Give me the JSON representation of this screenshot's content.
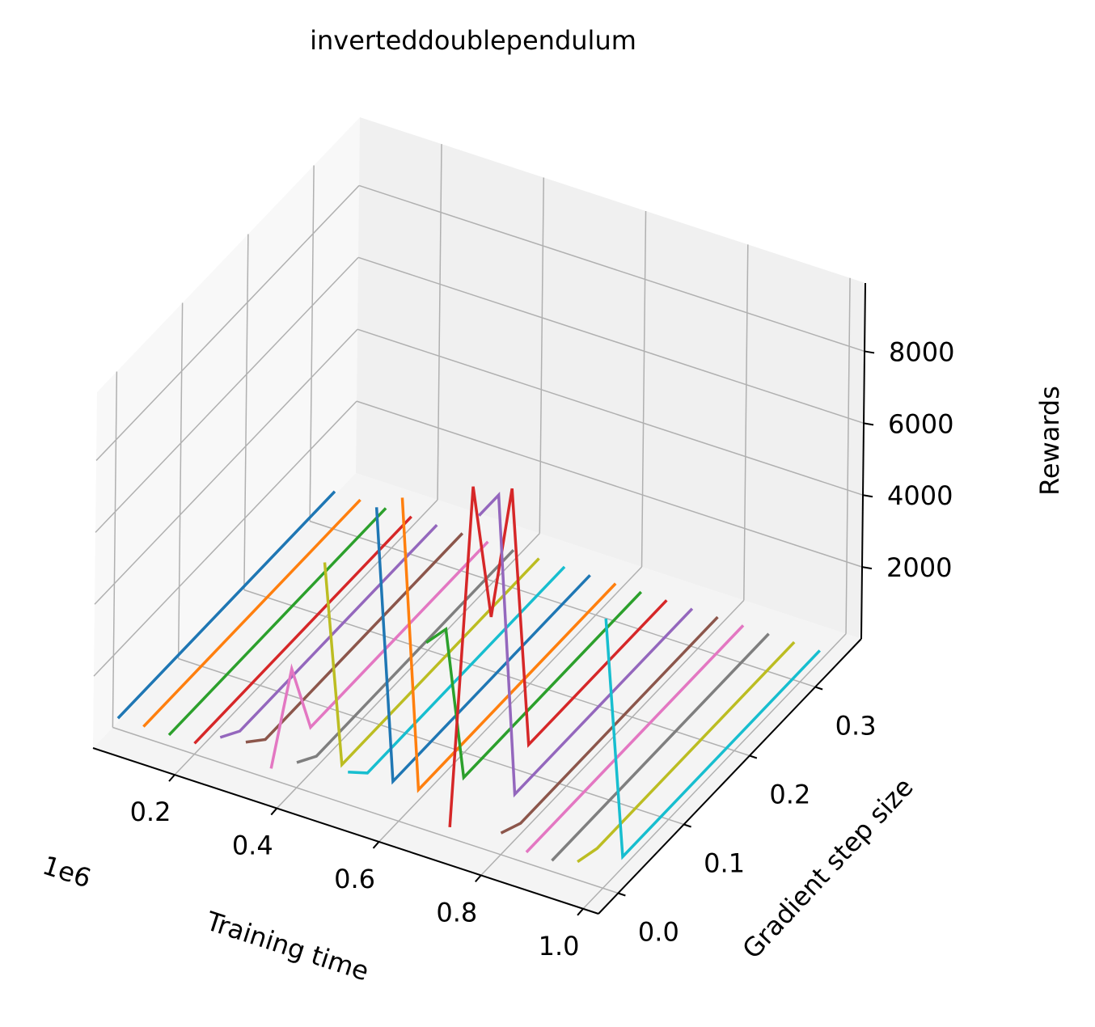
{
  "chart_data": {
    "type": "line3d",
    "title": "inverteddoublependulum",
    "xlabel": "Training time",
    "ylabel": "Gradient step size",
    "zlabel": "Rewards",
    "x_offset_label": "1e6",
    "xlim": [
      0.04,
      1.03
    ],
    "ylim": [
      -0.03,
      0.37
    ],
    "zlim": [
      0,
      9900
    ],
    "xticks": [
      0.2,
      0.4,
      0.6,
      0.8,
      {
        "value": 1.0,
        "label": "1.0"
      }
    ],
    "yticks": [
      {
        "value": 0.0,
        "label": "0.0"
      },
      0.1,
      0.2,
      0.3
    ],
    "zticks": [
      2000,
      4000,
      6000,
      8000
    ],
    "grid": true,
    "y": [
      0,
      0.03,
      0.06,
      0.09,
      0.12,
      0.15,
      0.18,
      0.21,
      0.24,
      0.27,
      0.3,
      0.33
    ],
    "series": [
      {
        "x": 0.05,
        "color": "#1f77b4",
        "values": [
          300,
          300,
          300,
          300,
          300,
          300,
          300,
          300,
          300,
          300,
          300,
          300
        ]
      },
      {
        "x": 0.1,
        "color": "#ff7f0e",
        "values": [
          300,
          300,
          300,
          300,
          300,
          300,
          300,
          300,
          300,
          300,
          300,
          300
        ]
      },
      {
        "x": 0.15,
        "color": "#2ca02c",
        "values": [
          300,
          300,
          300,
          300,
          300,
          300,
          300,
          300,
          300,
          300,
          300,
          300
        ]
      },
      {
        "x": 0.2,
        "color": "#d62728",
        "values": [
          300,
          300,
          300,
          300,
          300,
          300,
          300,
          300,
          300,
          300,
          300,
          300
        ]
      },
      {
        "x": 0.25,
        "color": "#9467bd",
        "values": [
          700,
          300,
          300,
          300,
          300,
          300,
          300,
          300,
          300,
          300,
          300,
          300
        ]
      },
      {
        "x": 0.3,
        "color": "#8c564b",
        "values": [
          800,
          300,
          300,
          300,
          300,
          300,
          300,
          300,
          300,
          300,
          300,
          300
        ]
      },
      {
        "x": 0.35,
        "color": "#e377c2",
        "values": [
          300,
          2500,
          300,
          300,
          300,
          300,
          300,
          300,
          300,
          300,
          300,
          300
        ]
      },
      {
        "x": 0.4,
        "color": "#7f7f7f",
        "values": [
          700,
          300,
          300,
          300,
          300,
          300,
          300,
          300,
          300,
          300,
          300,
          300
        ]
      },
      {
        "x": 0.45,
        "color": "#bcbd22",
        "values": [
          6500,
          300,
          300,
          300,
          300,
          300,
          300,
          300,
          300,
          300,
          300,
          300
        ]
      },
      {
        "x": 0.5,
        "color": "#17becf",
        "values": [
          900,
          300,
          300,
          300,
          300,
          300,
          300,
          300,
          300,
          300,
          300,
          300
        ]
      },
      {
        "x": 0.55,
        "color": "#1f77b4",
        "values": [
          8500,
          300,
          300,
          300,
          300,
          300,
          300,
          300,
          300,
          300,
          300,
          300
        ]
      },
      {
        "x": 0.6,
        "color": "#ff7f0e",
        "values": [
          9000,
          300,
          300,
          300,
          300,
          300,
          300,
          300,
          300,
          300,
          300,
          300
        ]
      },
      {
        "x": 0.65,
        "color": "#2ca02c",
        "values": [
          5200,
          5000,
          300,
          300,
          300,
          300,
          300,
          300,
          300,
          300,
          300,
          300
        ]
      },
      {
        "x": 0.7,
        "color": "#d62728",
        "values": [
          300,
          9200,
          5000,
          8000,
          300,
          300,
          300,
          300,
          300,
          300,
          300,
          300
        ]
      },
      {
        "x": 0.75,
        "color": "#9467bd",
        "values": [
          9200,
          9200,
          300,
          300,
          300,
          300,
          300,
          300,
          300,
          300,
          300,
          300
        ]
      },
      {
        "x": 0.8,
        "color": "#8c564b",
        "values": [
          600,
          300,
          300,
          300,
          300,
          300,
          300,
          300,
          300,
          300,
          300,
          300
        ]
      },
      {
        "x": 0.85,
        "color": "#e377c2",
        "values": [
          300,
          300,
          300,
          300,
          300,
          300,
          300,
          300,
          300,
          300,
          300,
          300
        ]
      },
      {
        "x": 0.9,
        "color": "#7f7f7f",
        "values": [
          300,
          300,
          300,
          300,
          300,
          300,
          300,
          300,
          300,
          300,
          300,
          300
        ]
      },
      {
        "x": 0.95,
        "color": "#bcbd22",
        "values": [
          500,
          300,
          300,
          300,
          300,
          300,
          300,
          300,
          300,
          300,
          300,
          300
        ]
      },
      {
        "x": 1.0,
        "color": "#17becf",
        "values": [
          7500,
          300,
          300,
          300,
          300,
          300,
          300,
          300,
          300,
          300,
          300,
          300
        ]
      }
    ]
  }
}
